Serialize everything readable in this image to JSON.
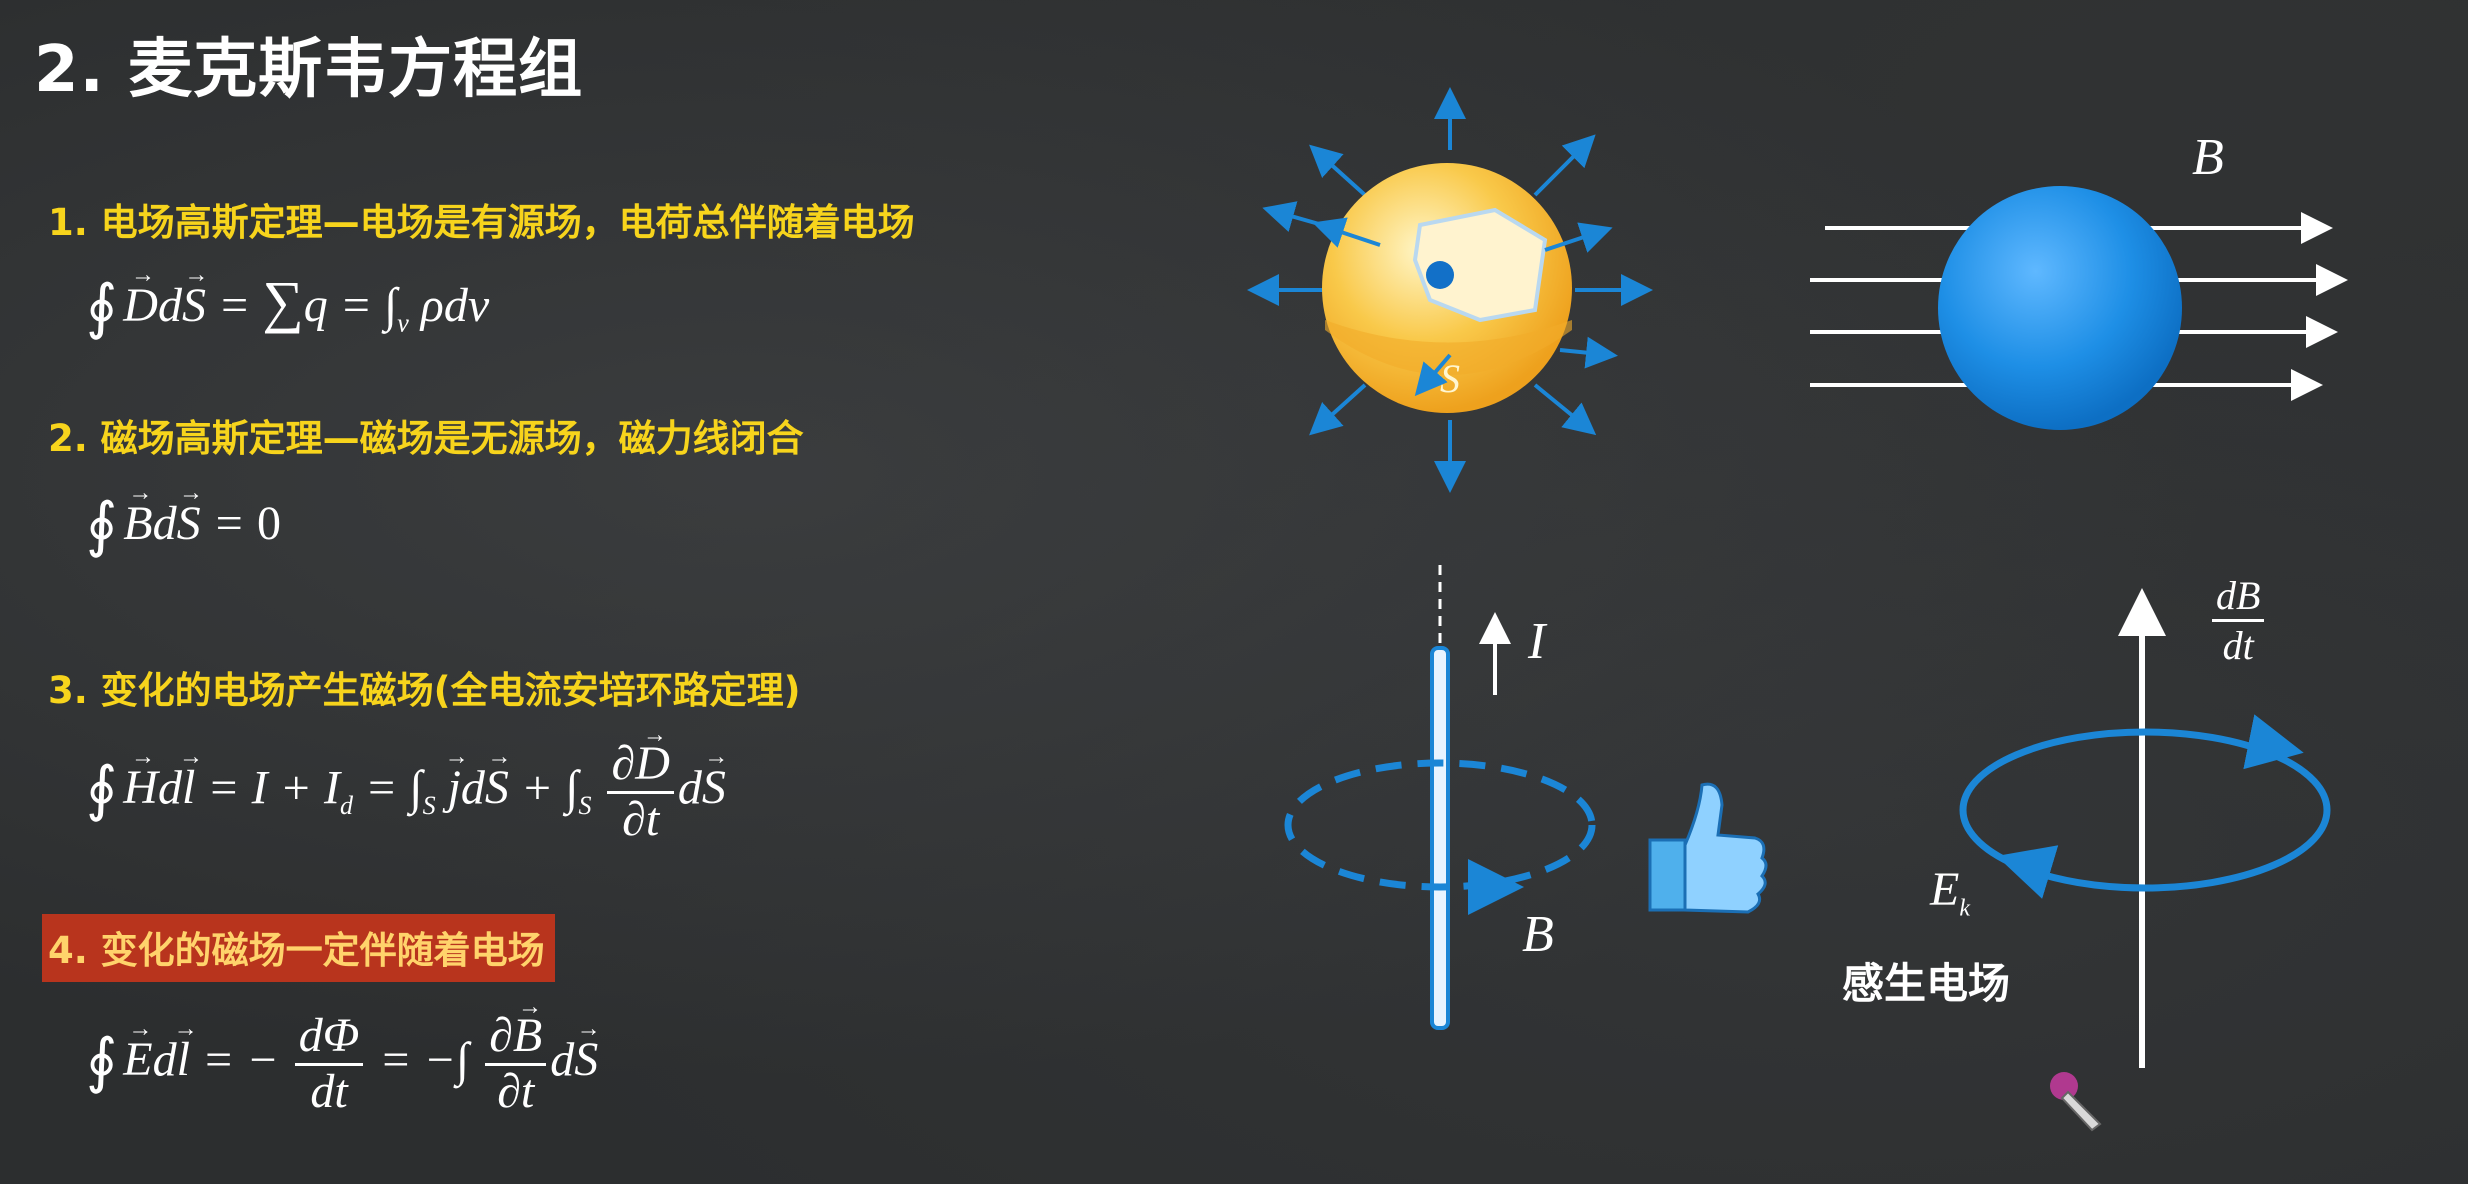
{
  "slide": {
    "title": "2. 麦克斯韦方程组"
  },
  "items": [
    {
      "label": "1. 电场高斯定理—电场是有源场，电荷总伴随着电场"
    },
    {
      "label": "2. 磁场高斯定理—磁场是无源场，磁力线闭合"
    },
    {
      "label": "3. 变化的电场产生磁场(全电流安培环路定理)"
    },
    {
      "label": "4. 变化的磁场一定伴随着电场"
    }
  ],
  "diagrams": {
    "gauss_surface_label": "S",
    "field_B_label": "B",
    "current_label": "I",
    "loop_B_label": "B",
    "dB_num": "dB",
    "dB_den": "dt",
    "ek_label": "E",
    "ek_sub": "k",
    "induced_field_label": "感生电场"
  },
  "colors": {
    "title": "#ffffff",
    "item_text": "#f7d41c",
    "highlight_bg": "#b8341d",
    "arrow_blue": "#1b86d6",
    "sphere_yellow": "#f6b62c"
  }
}
